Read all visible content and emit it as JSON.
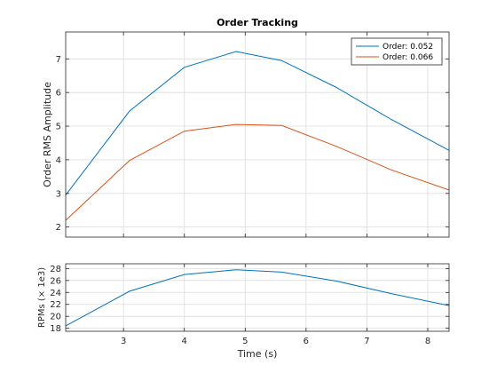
{
  "chart_data": [
    {
      "type": "line",
      "title": "Order Tracking",
      "xlabel": "",
      "ylabel": "Order RMS Amplitude",
      "xlim": [
        2.05,
        8.35
      ],
      "ylim": [
        1.7,
        7.8
      ],
      "xticks": [
        3,
        4,
        5,
        6,
        7,
        8
      ],
      "yticks": [
        2,
        3,
        4,
        5,
        6,
        7
      ],
      "grid": true,
      "legend_position": "top-right",
      "series": [
        {
          "name": "Order: 0.052",
          "color": "#0072BD",
          "x": [
            2.05,
            3.1,
            4.0,
            4.85,
            5.6,
            6.5,
            7.4,
            8.35
          ],
          "y": [
            2.95,
            5.45,
            6.75,
            7.22,
            6.95,
            6.15,
            5.2,
            4.28
          ]
        },
        {
          "name": "Order: 0.066",
          "color": "#D95319",
          "x": [
            2.05,
            3.1,
            4.0,
            4.85,
            5.6,
            6.5,
            7.4,
            8.35
          ],
          "y": [
            2.2,
            3.98,
            4.85,
            5.05,
            5.02,
            4.4,
            3.7,
            3.1
          ]
        }
      ]
    },
    {
      "type": "line",
      "title": "",
      "xlabel": "Time (s)",
      "ylabel": "RPMs (× 1e3)",
      "xlim": [
        2.05,
        8.35
      ],
      "ylim": [
        17.5,
        28.8
      ],
      "xticks": [
        3,
        4,
        5,
        6,
        7,
        8
      ],
      "yticks": [
        18,
        20,
        22,
        24,
        26,
        28
      ],
      "grid": true,
      "series": [
        {
          "color": "#0072BD",
          "x": [
            2.05,
            3.1,
            4.0,
            4.85,
            5.6,
            6.5,
            7.4,
            8.35
          ],
          "y": [
            18.4,
            24.2,
            27.0,
            27.8,
            27.4,
            25.9,
            23.8,
            21.8
          ]
        }
      ]
    }
  ]
}
